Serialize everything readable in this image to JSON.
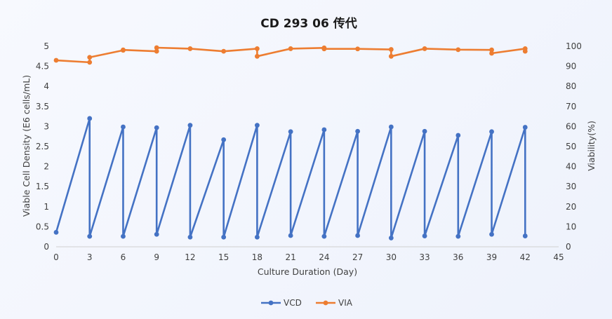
{
  "chart_data": {
    "type": "line",
    "title": "CD 293 06  传代",
    "xlabel": "Culture Duration (Day)",
    "ylabel": "Viable Cell Density (E6 cells/mL)",
    "y2label": "Viability(%)",
    "xlim": [
      0,
      45
    ],
    "ylim": [
      0,
      5
    ],
    "y2lim": [
      0,
      100
    ],
    "x_ticks": [
      "0",
      "3",
      "6",
      "9",
      "12",
      "15",
      "18",
      "21",
      "24",
      "27",
      "30",
      "33",
      "36",
      "39",
      "42",
      "45"
    ],
    "y_ticks": [
      "0",
      "0.5",
      "1",
      "1.5",
      "2",
      "2.5",
      "3",
      "3.5",
      "4",
      "4.5",
      "5"
    ],
    "y2_ticks": [
      "0",
      "10",
      "20",
      "30",
      "40",
      "50",
      "60",
      "70",
      "80",
      "90",
      "100"
    ],
    "grid": false,
    "legend_position": "bottom",
    "series": [
      {
        "name": "VCD",
        "axis": "left",
        "color": "#4472C4",
        "x": [
          0,
          3,
          3,
          6,
          6,
          9,
          9,
          12,
          12,
          15,
          15,
          18,
          18,
          21,
          21,
          24,
          24,
          27,
          27,
          30,
          30,
          33,
          33,
          36,
          36,
          39,
          39,
          42,
          42
        ],
        "y": [
          0.36,
          3.2,
          0.26,
          2.99,
          0.26,
          2.97,
          0.31,
          3.03,
          0.24,
          2.67,
          0.24,
          3.03,
          0.24,
          2.87,
          0.28,
          2.92,
          0.26,
          2.88,
          0.28,
          2.99,
          0.22,
          2.88,
          0.27,
          2.78,
          0.26,
          2.87,
          0.31,
          2.98,
          0.27
        ]
      },
      {
        "name": "VIA",
        "axis": "right",
        "color": "#ED7D31",
        "x": [
          0,
          3,
          3,
          6,
          6,
          9,
          9,
          12,
          15,
          18,
          18,
          21,
          24,
          24,
          27,
          30,
          30,
          33,
          36,
          39,
          39,
          42,
          42
        ],
        "y": [
          93,
          92,
          94.5,
          98,
          98.2,
          97.5,
          99.3,
          98.8,
          97.5,
          98.8,
          95,
          98.8,
          99.2,
          98.7,
          98.7,
          98.4,
          95,
          98.8,
          98.3,
          98.2,
          96.5,
          98.8,
          97.5
        ]
      }
    ]
  }
}
